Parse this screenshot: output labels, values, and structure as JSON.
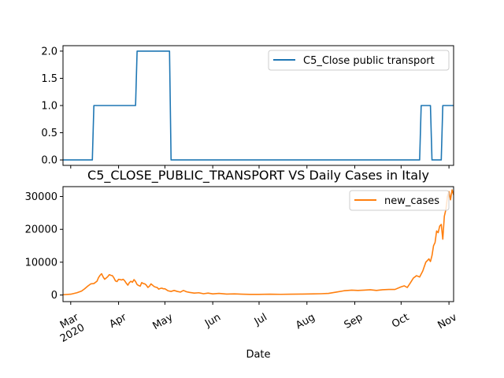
{
  "chart_data": [
    {
      "type": "line",
      "title": "",
      "xlabel": "",
      "ylabel": "",
      "ylim": [
        -0.1,
        2.1
      ],
      "yticks": [
        0.0,
        0.5,
        1.0,
        1.5,
        2.0
      ],
      "ytick_labels": [
        "0.0",
        "0.5",
        "1.0",
        "1.5",
        "2.0"
      ],
      "xlim": [
        "2020-02-25",
        "2020-11-04"
      ],
      "legend": "top-right",
      "grid": false,
      "series": [
        {
          "name": "C5_Close public transport",
          "color": "#1f77b4",
          "step": true,
          "x": [
            "2020-02-25",
            "2020-03-15",
            "2020-03-16",
            "2020-04-12",
            "2020-04-13",
            "2020-05-04",
            "2020-05-05",
            "2020-10-13",
            "2020-10-14",
            "2020-10-20",
            "2020-10-21",
            "2020-10-27",
            "2020-10-28",
            "2020-11-04"
          ],
          "y": [
            0,
            0,
            1,
            1,
            2,
            2,
            0,
            0,
            1,
            1,
            0,
            0,
            1,
            1
          ]
        }
      ]
    },
    {
      "type": "line",
      "title": "C5_CLOSE_PUBLIC_TRANSPORT VS Daily Cases in Italy",
      "xlabel": "Date",
      "ylabel": "",
      "ylim": [
        -2000,
        33000
      ],
      "yticks": [
        0,
        10000,
        20000,
        30000
      ],
      "ytick_labels": [
        "0",
        "10000",
        "20000",
        "30000"
      ],
      "xlim": [
        "2020-02-25",
        "2020-11-04"
      ],
      "xticks": [
        "2020-03-01",
        "2020-04-01",
        "2020-05-01",
        "2020-06-01",
        "2020-07-01",
        "2020-08-01",
        "2020-09-01",
        "2020-10-01",
        "2020-11-01"
      ],
      "xtick_labels": [
        "Mar\n2020",
        "Apr",
        "May",
        "Jun",
        "Jul",
        "Aug",
        "Sep",
        "Oct",
        "Nov"
      ],
      "legend": "top-right",
      "grid": false,
      "series": [
        {
          "name": "new_cases",
          "color": "#ff7f0e",
          "x": [
            "2020-02-25",
            "2020-03-01",
            "2020-03-05",
            "2020-03-08",
            "2020-03-10",
            "2020-03-12",
            "2020-03-14",
            "2020-03-16",
            "2020-03-18",
            "2020-03-19",
            "2020-03-20",
            "2020-03-21",
            "2020-03-22",
            "2020-03-23",
            "2020-03-24",
            "2020-03-25",
            "2020-03-26",
            "2020-03-27",
            "2020-03-28",
            "2020-03-29",
            "2020-03-30",
            "2020-03-31",
            "2020-04-01",
            "2020-04-02",
            "2020-04-03",
            "2020-04-04",
            "2020-04-05",
            "2020-04-06",
            "2020-04-07",
            "2020-04-08",
            "2020-04-09",
            "2020-04-10",
            "2020-04-11",
            "2020-04-12",
            "2020-04-13",
            "2020-04-14",
            "2020-04-15",
            "2020-04-16",
            "2020-04-17",
            "2020-04-18",
            "2020-04-19",
            "2020-04-20",
            "2020-04-21",
            "2020-04-22",
            "2020-04-23",
            "2020-04-24",
            "2020-04-25",
            "2020-04-26",
            "2020-04-27",
            "2020-04-28",
            "2020-04-29",
            "2020-04-30",
            "2020-05-01",
            "2020-05-03",
            "2020-05-05",
            "2020-05-07",
            "2020-05-09",
            "2020-05-11",
            "2020-05-13",
            "2020-05-15",
            "2020-05-17",
            "2020-05-20",
            "2020-05-23",
            "2020-05-26",
            "2020-05-29",
            "2020-06-01",
            "2020-06-05",
            "2020-06-10",
            "2020-06-15",
            "2020-06-20",
            "2020-06-25",
            "2020-07-01",
            "2020-07-08",
            "2020-07-15",
            "2020-07-22",
            "2020-07-29",
            "2020-08-05",
            "2020-08-10",
            "2020-08-15",
            "2020-08-20",
            "2020-08-25",
            "2020-08-30",
            "2020-09-03",
            "2020-09-07",
            "2020-09-11",
            "2020-09-15",
            "2020-09-19",
            "2020-09-23",
            "2020-09-27",
            "2020-10-01",
            "2020-10-03",
            "2020-10-05",
            "2020-10-07",
            "2020-10-09",
            "2020-10-11",
            "2020-10-13",
            "2020-10-15",
            "2020-10-17",
            "2020-10-19",
            "2020-10-20",
            "2020-10-21",
            "2020-10-22",
            "2020-10-23",
            "2020-10-24",
            "2020-10-25",
            "2020-10-26",
            "2020-10-27",
            "2020-10-28",
            "2020-10-29",
            "2020-10-30",
            "2020-10-31",
            "2020-11-01",
            "2020-11-02",
            "2020-11-03",
            "2020-11-04"
          ],
          "y": [
            100,
            250,
            700,
            1200,
            1900,
            2700,
            3400,
            3500,
            4200,
            5300,
            6000,
            6500,
            5500,
            4800,
            5200,
            5600,
            6200,
            6000,
            5900,
            5200,
            4300,
            4100,
            4800,
            4700,
            4600,
            4800,
            4300,
            3600,
            3000,
            3800,
            4200,
            3900,
            4700,
            4100,
            3200,
            2900,
            2700,
            3800,
            3500,
            3400,
            3000,
            2300,
            2700,
            3400,
            3000,
            2600,
            2400,
            2300,
            1800,
            2000,
            2100,
            1900,
            1900,
            1300,
            1100,
            1400,
            1100,
            900,
            1400,
            1000,
            800,
            600,
            700,
            400,
            600,
            350,
            500,
            300,
            350,
            250,
            200,
            200,
            250,
            220,
            250,
            300,
            350,
            400,
            500,
            900,
            1300,
            1500,
            1400,
            1500,
            1600,
            1400,
            1600,
            1700,
            1700,
            2500,
            2800,
            2300,
            3700,
            5200,
            5900,
            5500,
            7300,
            10000,
            11000,
            10200,
            12000,
            15000,
            16000,
            19500,
            19000,
            21000,
            21500,
            17000,
            24000,
            26000,
            30000,
            31500,
            29000,
            32000,
            30500
          ]
        }
      ]
    }
  ]
}
